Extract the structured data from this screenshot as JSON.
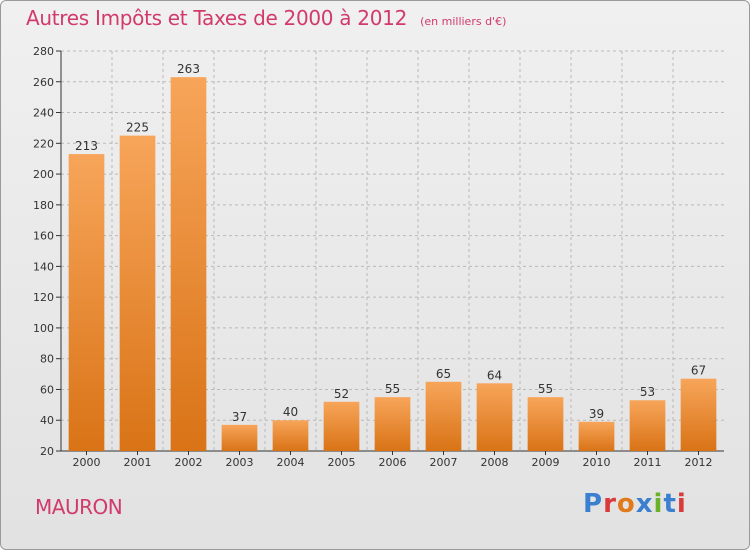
{
  "header": {
    "title": "Autres Impôts et Taxes de 2000 à 2012",
    "unit": "(en milliers d'€)"
  },
  "footer": {
    "commune": "MAURON",
    "logo_text": "Proxiti"
  },
  "colors": {
    "title": "#d23a6b",
    "bar_top": "#f7a55a",
    "bar_bottom": "#d97316",
    "axis": "#333333",
    "grid": "#b9b9b9",
    "logo": [
      "#3a7fd0",
      "#d93a3a",
      "#e07a1a",
      "#3a7fd0",
      "#6ab22a",
      "#3a7fd0",
      "#d93a3a"
    ]
  },
  "chart_data": {
    "type": "bar",
    "title": "Autres Impôts et Taxes de 2000 à 2012",
    "subtitle": "(en milliers d'€)",
    "categories": [
      "2000",
      "2001",
      "2002",
      "2003",
      "2004",
      "2005",
      "2006",
      "2007",
      "2008",
      "2009",
      "2010",
      "2011",
      "2012"
    ],
    "values": [
      213,
      225,
      263,
      37,
      40,
      52,
      55,
      65,
      64,
      55,
      39,
      53,
      67
    ],
    "ylim": [
      20,
      280
    ],
    "yticks": [
      20,
      40,
      60,
      80,
      100,
      120,
      140,
      160,
      180,
      200,
      220,
      240,
      260,
      280
    ],
    "grid": true,
    "data_labels": true,
    "legend": "none"
  }
}
